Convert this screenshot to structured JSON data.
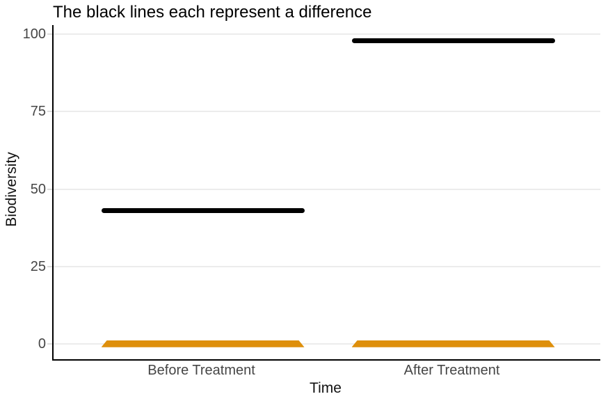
{
  "title": "The black lines each represent a difference",
  "axes": {
    "x_label": "Time",
    "y_label": "Biodiversity"
  },
  "colors": {
    "black_line": "#000000",
    "orange_line": "#de8f0b",
    "gridline": "#ececec",
    "axis_line": "#000000",
    "tick_text": "#454545",
    "title_text": "#000000"
  },
  "chart_data": {
    "type": "line",
    "subtype": "horizontal-line-segments",
    "title": "The black lines each represent a difference",
    "xlabel": "Time",
    "ylabel": "Biodiversity",
    "categories": [
      "Before Treatment",
      "After Treatment"
    ],
    "series": [
      {
        "name": "black-difference-lines",
        "color": "#000000",
        "values": [
          43,
          98
        ]
      },
      {
        "name": "orange-baseline-lines",
        "color": "#de8f0b",
        "values": [
          0,
          0
        ]
      }
    ],
    "yticks": [
      0,
      25,
      50,
      75,
      100
    ],
    "ylim": [
      -5,
      103
    ],
    "grid": "horizontal-only",
    "legend": "none"
  }
}
